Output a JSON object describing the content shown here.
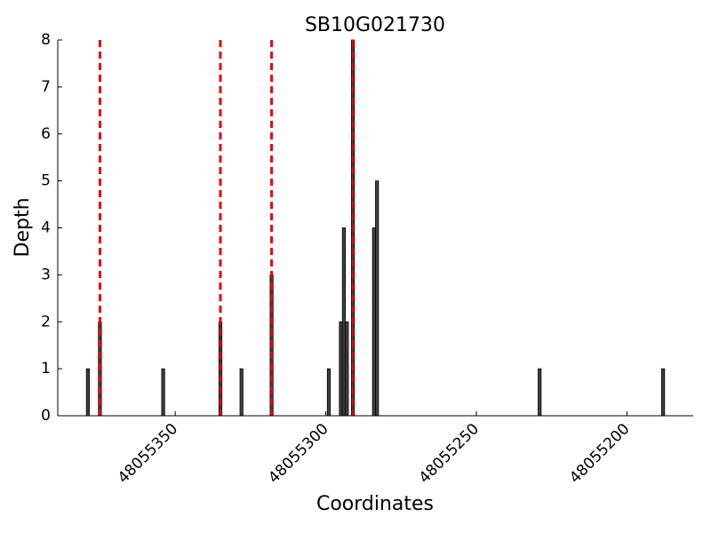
{
  "chart_data": {
    "type": "bar",
    "title": "SB10G021730",
    "x_label": "Coordinates",
    "y_label": "Depth",
    "x": [
      48055379,
      48055375,
      48055354,
      48055335,
      48055328,
      48055318,
      48055299,
      48055295,
      48055294,
      48055293,
      48055291,
      48055284,
      48055283,
      48055229,
      48055188
    ],
    "values": [
      1,
      2,
      1,
      2,
      1,
      3,
      1,
      2,
      4,
      2,
      8,
      4,
      5,
      1,
      1
    ],
    "color": "#404040",
    "vlines": [
      48055375,
      48055335,
      48055318,
      48055291
    ],
    "vline_color": "#e8000b",
    "xlim": [
      48055389,
      48055178
    ],
    "xticks": [
      48055350,
      48055300,
      48055250,
      48055200
    ],
    "ylim": [
      0,
      8
    ],
    "yticks": [
      0,
      1,
      2,
      3,
      4,
      5,
      6,
      7,
      8
    ]
  }
}
